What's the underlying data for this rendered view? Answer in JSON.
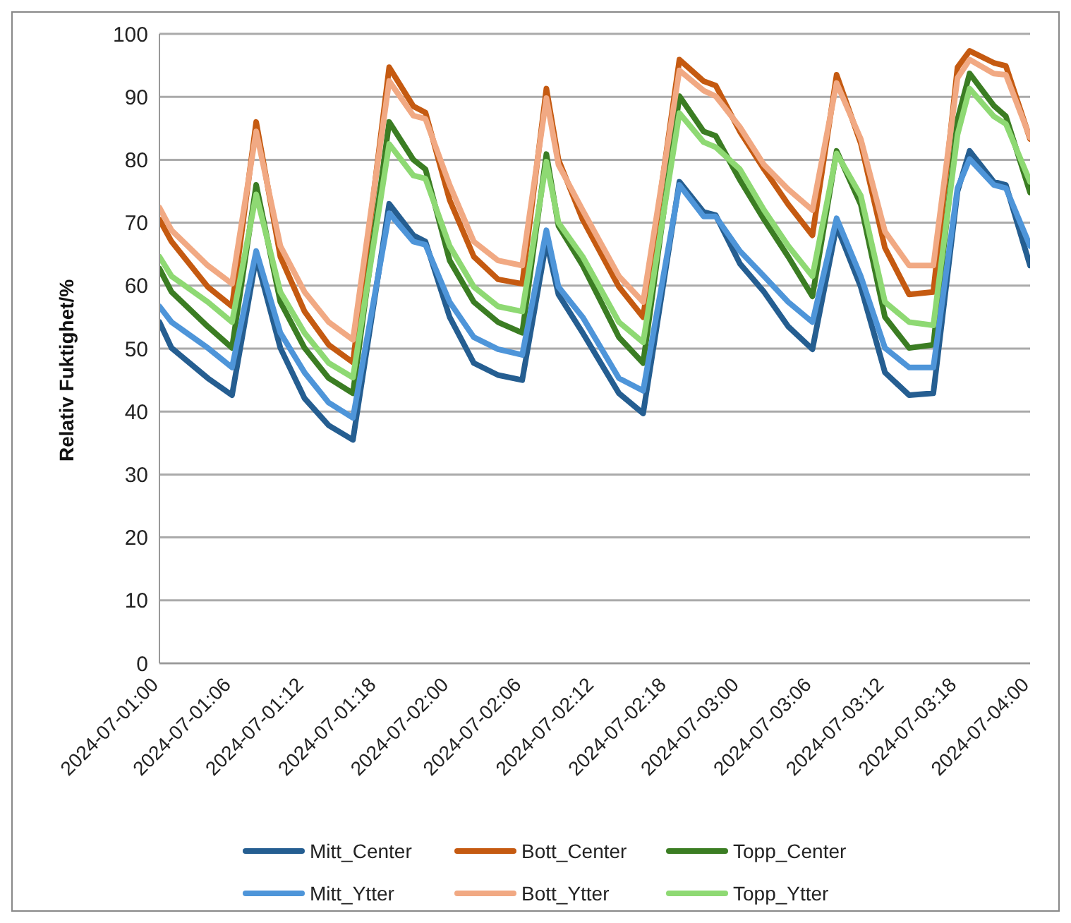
{
  "chart_data": {
    "type": "line",
    "ylabel": "Relativ Fuktighet/%",
    "x": [
      "2024-07-01T00:00",
      "2024-07-01T01:00",
      "2024-07-01T04:00",
      "2024-07-01T06:00",
      "2024-07-01T08:00",
      "2024-07-01T10:00",
      "2024-07-01T12:00",
      "2024-07-01T14:00",
      "2024-07-01T16:00",
      "2024-07-01T19:00",
      "2024-07-01T21:00",
      "2024-07-01T22:00",
      "2024-07-02T00:00",
      "2024-07-02T02:00",
      "2024-07-02T04:00",
      "2024-07-02T06:00",
      "2024-07-02T08:00",
      "2024-07-02T09:00",
      "2024-07-02T11:00",
      "2024-07-02T14:00",
      "2024-07-02T16:00",
      "2024-07-02T19:00",
      "2024-07-02T21:00",
      "2024-07-02T22:00",
      "2024-07-03T00:00",
      "2024-07-03T02:00",
      "2024-07-03T04:00",
      "2024-07-03T06:00",
      "2024-07-03T08:00",
      "2024-07-03T10:00",
      "2024-07-03T12:00",
      "2024-07-03T14:00",
      "2024-07-03T16:00",
      "2024-07-03T18:00",
      "2024-07-03T19:00",
      "2024-07-03T21:00",
      "2024-07-03T22:00",
      "2024-07-04T00:00"
    ],
    "xlim": [
      "2024-07-01T00:00",
      "2024-07-04T00:00"
    ],
    "xticks": [
      {
        "value": "2024-07-01T00:00",
        "label": "2024-07-01:00"
      },
      {
        "value": "2024-07-01T06:00",
        "label": "2024-07-01:06"
      },
      {
        "value": "2024-07-01T12:00",
        "label": "2024-07-01:12"
      },
      {
        "value": "2024-07-01T18:00",
        "label": "2024-07-01:18"
      },
      {
        "value": "2024-07-02T00:00",
        "label": "2024-07-02:00"
      },
      {
        "value": "2024-07-02T06:00",
        "label": "2024-07-02:06"
      },
      {
        "value": "2024-07-02T12:00",
        "label": "2024-07-02:12"
      },
      {
        "value": "2024-07-02T18:00",
        "label": "2024-07-02:18"
      },
      {
        "value": "2024-07-03T00:00",
        "label": "2024-07-03:00"
      },
      {
        "value": "2024-07-03T06:00",
        "label": "2024-07-03:06"
      },
      {
        "value": "2024-07-03T12:00",
        "label": "2024-07-03:12"
      },
      {
        "value": "2024-07-03T18:00",
        "label": "2024-07-03:18"
      },
      {
        "value": "2024-07-04T00:00",
        "label": "2024-07-04:00"
      }
    ],
    "ylim": [
      0,
      100
    ],
    "yticks": [
      0,
      10,
      20,
      30,
      40,
      50,
      60,
      70,
      80,
      90,
      100
    ],
    "grid": "y",
    "legend": "bottom",
    "line_style": "solid",
    "series": [
      {
        "name": "Mitt_Center",
        "color": "#255e91",
        "values": [
          54.2,
          50.1,
          45.3,
          42.6,
          64.5,
          50.1,
          42.1,
          37.8,
          35.5,
          73,
          68,
          67,
          55,
          47.7,
          45.8,
          45,
          67,
          58.6,
          52.5,
          42.9,
          39.7,
          76.5,
          71.7,
          71.2,
          63.5,
          59,
          53.5,
          49.9,
          69.5,
          59.8,
          46.2,
          42.6,
          42.9,
          75,
          81.4,
          76.5,
          76,
          63.2
        ]
      },
      {
        "name": "Bott_Center",
        "color": "#c55a11",
        "values": [
          70.5,
          67,
          59.8,
          56.7,
          86,
          64.6,
          55.9,
          50.6,
          47.8,
          94.7,
          88.5,
          87.5,
          73.6,
          64.6,
          61,
          60.3,
          91.3,
          80,
          70.5,
          59.8,
          55,
          95.9,
          92.5,
          91.8,
          84.5,
          78.5,
          72.9,
          68,
          93.5,
          82.6,
          66,
          58.6,
          59,
          94.7,
          97.3,
          95.4,
          94.9,
          83.3
        ]
      },
      {
        "name": "Topp_Center",
        "color": "#3b7d23",
        "values": [
          62.7,
          59,
          53.5,
          50.1,
          76,
          57.4,
          50.1,
          45.3,
          42.9,
          86,
          80,
          78.5,
          64,
          57.4,
          54.2,
          52.5,
          80.9,
          69.5,
          63.2,
          51.8,
          47.7,
          90.1,
          84.5,
          83.8,
          76.8,
          70.5,
          64.6,
          58.3,
          81.4,
          72.9,
          55,
          50.1,
          50.6,
          86.4,
          93.7,
          88.6,
          86.9,
          74.8
        ]
      },
      {
        "name": "Mitt_Ytter",
        "color": "#4e95d9",
        "values": [
          56.7,
          54.2,
          50.1,
          47,
          65.5,
          52.5,
          46.2,
          41.4,
          39,
          71.5,
          67,
          66.5,
          57.4,
          51.8,
          49.9,
          49,
          68.8,
          59.8,
          55,
          45.3,
          43.3,
          76,
          71,
          71,
          65.5,
          61.5,
          57.4,
          54.2,
          70.7,
          61.5,
          50.1,
          47,
          47,
          75.5,
          80.1,
          76,
          75.5,
          66.3
        ]
      },
      {
        "name": "Bott_Ytter",
        "color": "#f1a983",
        "values": [
          72.4,
          68.8,
          63.2,
          60.3,
          84.5,
          66.3,
          59,
          54.2,
          51.4,
          92.5,
          87,
          86.5,
          76,
          67,
          64,
          63.2,
          89.8,
          79.2,
          72,
          61.5,
          57.4,
          94.2,
          91,
          90.1,
          85.2,
          79.2,
          75.3,
          72,
          92.2,
          83.3,
          68.6,
          63.2,
          63.2,
          93,
          95.9,
          93.7,
          93.5,
          83.5
        ]
      },
      {
        "name": "Topp_Ytter",
        "color": "#8ed973",
        "values": [
          64.6,
          61.5,
          57.4,
          54.2,
          74.5,
          59,
          52.5,
          47.7,
          45.4,
          82.5,
          77.5,
          77,
          66.3,
          59.8,
          56.7,
          55.9,
          79.7,
          70,
          64.6,
          54.2,
          51,
          87.4,
          82.8,
          82,
          78.5,
          72,
          66.3,
          61.5,
          81,
          74.3,
          57.4,
          54.2,
          53.7,
          84,
          91.3,
          86.9,
          85.7,
          76.5
        ]
      }
    ]
  }
}
